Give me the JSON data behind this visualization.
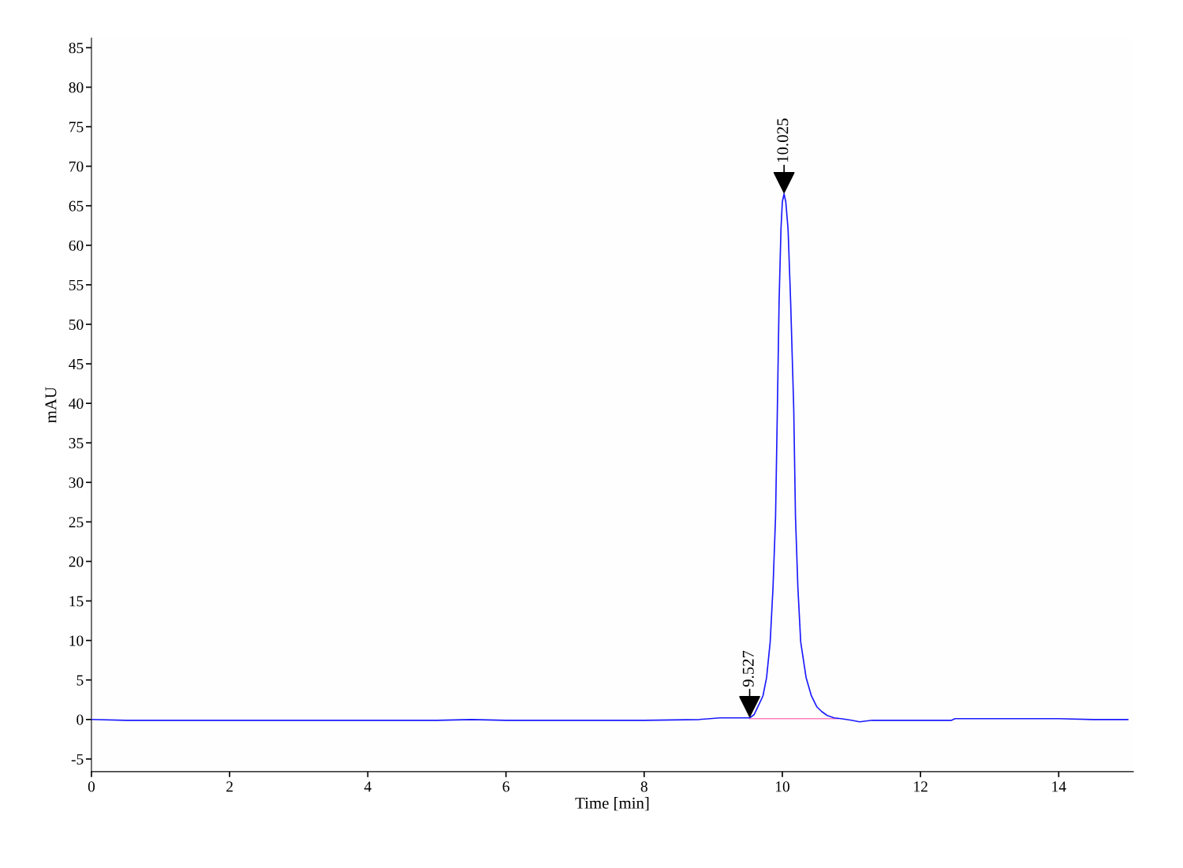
{
  "chart_data": {
    "type": "line",
    "xlabel": "Time [min]",
    "ylabel": "mAU",
    "xlim": [
      0,
      15.08
    ],
    "ylim": [
      -6.6,
      86.2
    ],
    "xticks": [
      0,
      2,
      4,
      6,
      8,
      10,
      12,
      14
    ],
    "yticks": [
      -5,
      0,
      5,
      10,
      15,
      20,
      25,
      30,
      35,
      40,
      45,
      50,
      55,
      60,
      65,
      70,
      75,
      80,
      85
    ],
    "series": [
      {
        "color": "#1a1aff",
        "x": [
          0,
          0.5,
          1,
          2,
          3,
          4,
          5,
          5.5,
          6,
          7,
          8,
          8.8,
          9.1,
          9.3,
          9.527,
          9.59,
          9.645,
          9.72,
          9.772,
          9.824,
          9.865,
          9.902,
          9.928,
          9.953,
          9.98,
          10.0,
          10.025,
          10.05,
          10.083,
          10.12,
          10.165,
          10.19,
          10.225,
          10.266,
          10.344,
          10.42,
          10.5,
          10.57,
          10.65,
          10.75,
          10.85,
          11.0,
          11.12,
          11.3,
          11.5,
          12.0,
          12.45,
          12.5,
          13.0,
          13.5,
          14.0,
          14.5,
          15.0
        ],
        "values": [
          0,
          -0.1,
          -0.1,
          -0.1,
          -0.1,
          -0.1,
          -0.1,
          0,
          -0.1,
          -0.1,
          -0.1,
          0,
          0.2,
          0.2,
          0.2,
          0.6,
          1.6,
          3.0,
          5.3,
          9.8,
          16.7,
          25.7,
          39.3,
          52.9,
          62,
          65.5,
          66.5,
          65.5,
          62,
          52.9,
          39.3,
          25.7,
          16.7,
          9.8,
          5.3,
          3.0,
          1.6,
          1.0,
          0.5,
          0.2,
          0.1,
          -0.1,
          -0.3,
          -0.1,
          -0.1,
          -0.1,
          -0.1,
          0.1,
          0.1,
          0.1,
          0.1,
          0,
          0
        ]
      },
      {
        "color": "#ff80c0",
        "x": [
          9.527,
          10.81
        ],
        "values": [
          0.1,
          0.1
        ]
      }
    ],
    "annotations": [
      {
        "text": "9.527",
        "x": 9.527,
        "y": 0.2
      },
      {
        "text": "10.025",
        "x": 10.025,
        "y": 66.5
      }
    ]
  }
}
